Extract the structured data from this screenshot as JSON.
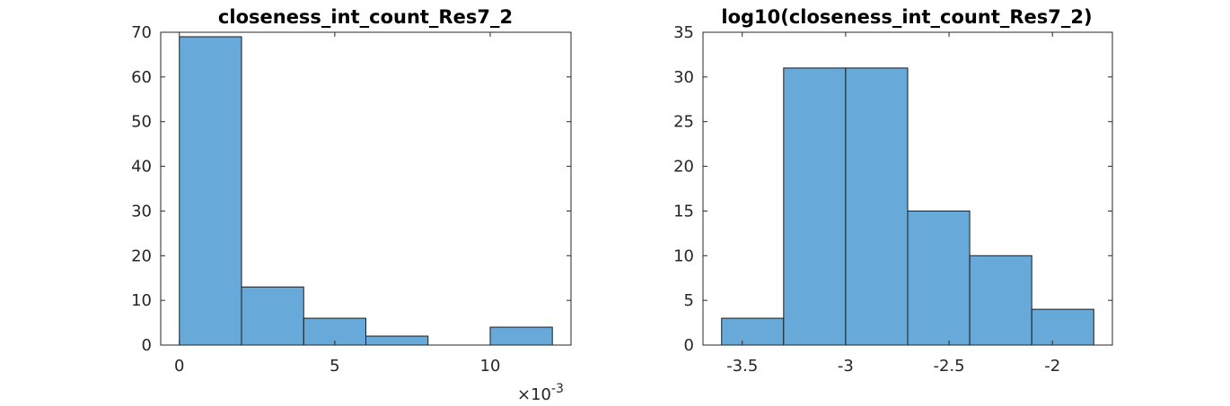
{
  "chart_data": [
    {
      "type": "bar",
      "title": "closeness_int_count_Res7_2",
      "bins": [
        {
          "x0": 0,
          "x1": 2,
          "value": 69
        },
        {
          "x0": 2,
          "x1": 4,
          "value": 13
        },
        {
          "x0": 4,
          "x1": 6,
          "value": 6
        },
        {
          "x0": 6,
          "x1": 8,
          "value": 2
        },
        {
          "x0": 8,
          "x1": 10,
          "value": 0
        },
        {
          "x0": 10,
          "x1": 12,
          "value": 4
        }
      ],
      "xlim": [
        -0.6,
        12.6
      ],
      "ylim": [
        0,
        70
      ],
      "xticks": [
        0,
        5,
        10
      ],
      "xtick_labels": [
        "0",
        "5",
        "10"
      ],
      "yticks": [
        0,
        10,
        20,
        30,
        40,
        50,
        60,
        70
      ],
      "ytick_labels": [
        "0",
        "10",
        "20",
        "30",
        "40",
        "50",
        "60",
        "70"
      ],
      "x_exponent": {
        "base": "×10",
        "power": "-3"
      }
    },
    {
      "type": "bar",
      "title": "log10(closeness_int_count_Res7_2)",
      "bins": [
        {
          "x0": -3.6,
          "x1": -3.3,
          "value": 3
        },
        {
          "x0": -3.3,
          "x1": -3.0,
          "value": 31
        },
        {
          "x0": -3.0,
          "x1": -2.7,
          "value": 31
        },
        {
          "x0": -2.7,
          "x1": -2.4,
          "value": 15
        },
        {
          "x0": -2.4,
          "x1": -2.1,
          "value": 10
        },
        {
          "x0": -2.1,
          "x1": -1.8,
          "value": 4
        }
      ],
      "xlim": [
        -3.69,
        -1.71
      ],
      "ylim": [
        0,
        35
      ],
      "xticks": [
        -3.5,
        -3,
        -2.5,
        -2
      ],
      "xtick_labels": [
        "-3.5",
        "-3",
        "-2.5",
        "-2"
      ],
      "yticks": [
        0,
        5,
        10,
        15,
        20,
        25,
        30,
        35
      ],
      "ytick_labels": [
        "0",
        "5",
        "10",
        "15",
        "20",
        "25",
        "30",
        "35"
      ]
    }
  ],
  "colors": {
    "bar_fill": "#67aad9",
    "bar_edge": "#1a1a1a",
    "axis": "#262626"
  }
}
